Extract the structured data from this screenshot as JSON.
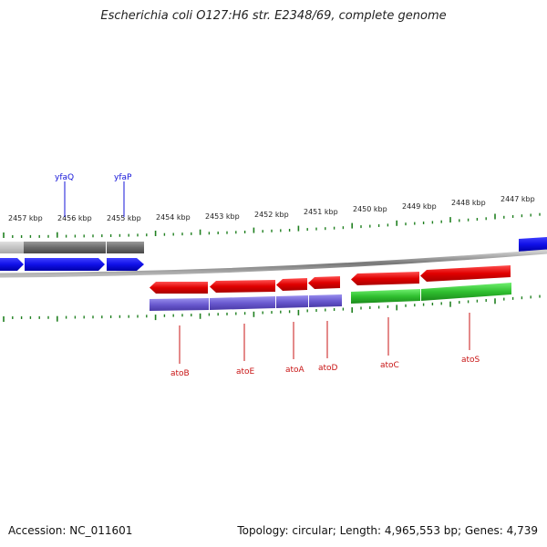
{
  "title": "Escherichia coli O127:H6 str. E2348/69, complete genome",
  "footer": {
    "accession": "Accession: NC_011601",
    "summary": "Topology: circular; Length: 4,965,553 bp; Genes: 4,739"
  },
  "ticks": [
    {
      "label": "2457 kbp"
    },
    {
      "label": "2456 kbp"
    },
    {
      "label": "2455 kbp"
    },
    {
      "label": "2454 kbp"
    },
    {
      "label": "2453 kbp"
    },
    {
      "label": "2452 kbp"
    },
    {
      "label": "2451 kbp"
    },
    {
      "label": "2450 kbp"
    },
    {
      "label": "2449 kbp"
    },
    {
      "label": "2448 kbp"
    },
    {
      "label": "2447 kbp"
    }
  ],
  "top_genes": [
    {
      "name": "yfaQ"
    },
    {
      "name": "yfaP"
    }
  ],
  "bottom_genes": [
    {
      "name": "atoB"
    },
    {
      "name": "atoE"
    },
    {
      "name": "atoA"
    },
    {
      "name": "atoD"
    },
    {
      "name": "atoC"
    },
    {
      "name": "atoS"
    }
  ],
  "colors": {
    "forward_gene": "#1a1af0",
    "reverse_gene": "#e81010",
    "forward_cds_gray": "#6e6e6e",
    "reverse_cds_purple": "#7060d0",
    "reverse_cds_green": "#38c038",
    "tick": "#208020",
    "backbone": "#888888"
  }
}
